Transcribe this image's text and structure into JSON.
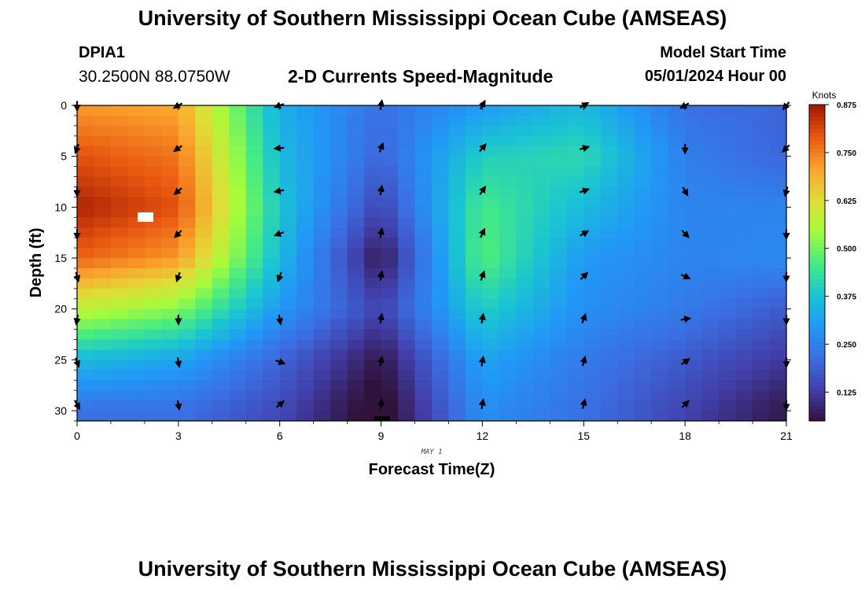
{
  "header": {
    "title": "University of Southern Mississippi Ocean Cube (AMSEAS)",
    "station": "DPIA1",
    "coords": "30.2500N  88.0750W",
    "subtitle": "2-D Currents Speed-Magnitude",
    "start_label": "Model Start Time",
    "start_time": "05/01/2024 Hour 00"
  },
  "footer": {
    "title": "University of Southern Mississippi Ocean Cube (AMSEAS)"
  },
  "chart_data": {
    "type": "heatmap",
    "title": "2-D Currents Speed-Magnitude",
    "xlabel": "Forecast Time(Z)",
    "ylabel": "Depth (ft)",
    "date_label": "MAY 1",
    "units": "Knots",
    "xlim": [
      0,
      21
    ],
    "ylim": [
      0,
      31
    ],
    "x_ticks": [
      0,
      3,
      6,
      9,
      12,
      15,
      18,
      21
    ],
    "y_ticks": [
      0,
      5,
      10,
      15,
      20,
      25,
      30
    ],
    "colorbar": {
      "min": 0.05,
      "max": 0.875,
      "ticks": [
        0.125,
        0.25,
        0.375,
        0.5,
        0.625,
        0.75,
        0.875
      ],
      "tick_labels": [
        "0.125",
        "0.250",
        "0.375",
        "0.500",
        "0.625",
        "0.750",
        "0.875"
      ]
    },
    "speed_field": {
      "hours": [
        0,
        3,
        6,
        9,
        12,
        15,
        18,
        21
      ],
      "depths": [
        0,
        5,
        10,
        15,
        20,
        25,
        30
      ],
      "values": [
        [
          0.72,
          0.7,
          0.34,
          0.22,
          0.3,
          0.36,
          0.22,
          0.2
        ],
        [
          0.8,
          0.76,
          0.36,
          0.2,
          0.4,
          0.42,
          0.25,
          0.2
        ],
        [
          0.86,
          0.8,
          0.38,
          0.14,
          0.46,
          0.36,
          0.26,
          0.26
        ],
        [
          0.78,
          0.72,
          0.36,
          0.06,
          0.48,
          0.3,
          0.26,
          0.27
        ],
        [
          0.58,
          0.52,
          0.3,
          0.14,
          0.4,
          0.28,
          0.24,
          0.18
        ],
        [
          0.36,
          0.32,
          0.2,
          0.06,
          0.32,
          0.24,
          0.18,
          0.12
        ],
        [
          0.22,
          0.22,
          0.15,
          0.02,
          0.28,
          0.22,
          0.14,
          0.06
        ]
      ]
    },
    "vectors": {
      "hours": [
        0,
        3,
        6,
        9,
        12,
        15,
        18,
        21
      ],
      "depths": [
        0,
        4.2,
        8.4,
        12.6,
        16.8,
        21,
        25.2,
        29.4
      ],
      "directions_deg": [
        [
          180,
          240,
          250,
          10,
          30,
          60,
          240,
          220
        ],
        [
          200,
          235,
          265,
          20,
          40,
          75,
          180,
          225
        ],
        [
          180,
          230,
          260,
          10,
          35,
          70,
          150,
          195
        ],
        [
          180,
          225,
          250,
          10,
          25,
          60,
          135,
          180
        ],
        [
          165,
          200,
          200,
          10,
          20,
          45,
          115,
          180
        ],
        [
          190,
          180,
          170,
          10,
          10,
          20,
          80,
          180
        ],
        [
          160,
          170,
          110,
          10,
          10,
          15,
          55,
          180
        ],
        [
          150,
          170,
          50,
          10,
          10,
          15,
          45,
          180
        ]
      ]
    }
  }
}
